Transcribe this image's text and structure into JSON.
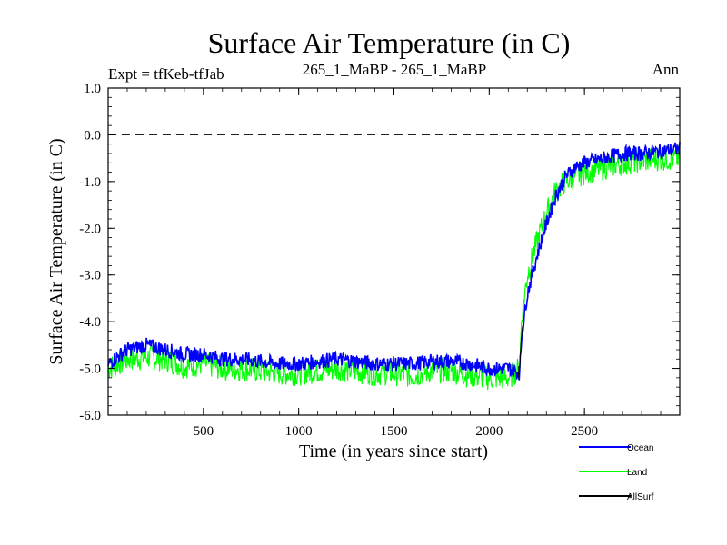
{
  "chart_data": {
    "type": "line",
    "title": "Surface Air Temperature (in C)",
    "subtitle_left": "Expt = tfKeb-tfJab",
    "subtitle_center": "265_1_MaBP - 265_1_MaBP",
    "subtitle_right": "Ann",
    "xlabel": "Time (in years since start)",
    "ylabel": "Surface Air Temperature (in C)",
    "xlim": [
      0,
      3000
    ],
    "ylim": [
      -6.0,
      1.0
    ],
    "xticks": [
      500,
      1000,
      1500,
      2000,
      2500
    ],
    "xtick_labels": [
      "500",
      "1000",
      "1500",
      "2000",
      "2500"
    ],
    "yticks": [
      1.0,
      0.0,
      -1.0,
      -2.0,
      -3.0,
      -4.0,
      -5.0,
      -6.0
    ],
    "ytick_labels": [
      "1.0",
      "0.0",
      "-1.0",
      "-2.0",
      "-3.0",
      "-4.0",
      "-5.0",
      "-6.0"
    ],
    "reference_line": 0.0,
    "legend_position": "bottom-right",
    "series": [
      {
        "name": "Ocean",
        "color": "#0000ff",
        "x": [
          0,
          100,
          200,
          300,
          400,
          500,
          600,
          700,
          800,
          900,
          1000,
          1100,
          1200,
          1300,
          1400,
          1500,
          1600,
          1700,
          1800,
          1900,
          2000,
          2100,
          2160,
          2170,
          2200,
          2250,
          2300,
          2350,
          2400,
          2450,
          2500,
          2600,
          2700,
          2800,
          2900,
          3000
        ],
        "values": [
          -4.9,
          -4.6,
          -4.5,
          -4.6,
          -4.7,
          -4.7,
          -4.8,
          -4.8,
          -4.85,
          -4.9,
          -4.9,
          -4.85,
          -4.8,
          -4.85,
          -4.9,
          -4.9,
          -4.9,
          -4.85,
          -4.85,
          -4.9,
          -5.0,
          -5.0,
          -5.1,
          -4.3,
          -3.4,
          -2.6,
          -1.9,
          -1.3,
          -0.9,
          -0.7,
          -0.6,
          -0.5,
          -0.4,
          -0.4,
          -0.35,
          -0.3
        ]
      },
      {
        "name": "Land",
        "color": "#00ff00",
        "x": [
          0,
          100,
          200,
          300,
          400,
          500,
          600,
          700,
          800,
          900,
          1000,
          1100,
          1200,
          1300,
          1400,
          1500,
          1600,
          1700,
          1800,
          1900,
          2000,
          2100,
          2160,
          2170,
          2200,
          2250,
          2300,
          2350,
          2400,
          2450,
          2500,
          2600,
          2700,
          2800,
          2900,
          3000
        ],
        "values": [
          -5.0,
          -4.8,
          -4.75,
          -4.8,
          -4.95,
          -4.9,
          -5.0,
          -5.0,
          -5.05,
          -5.1,
          -5.1,
          -5.05,
          -5.0,
          -5.05,
          -5.1,
          -5.1,
          -5.15,
          -5.05,
          -5.05,
          -5.15,
          -5.2,
          -5.2,
          -5.0,
          -3.9,
          -3.0,
          -2.3,
          -1.7,
          -1.2,
          -1.0,
          -0.9,
          -0.8,
          -0.7,
          -0.6,
          -0.55,
          -0.5,
          -0.5
        ]
      },
      {
        "name": "AllSurf",
        "color": "#000000",
        "x": [
          2150,
          2160,
          2170,
          2180
        ],
        "values": [
          -5.2,
          -4.9,
          -4.3,
          -4.0
        ]
      }
    ]
  }
}
